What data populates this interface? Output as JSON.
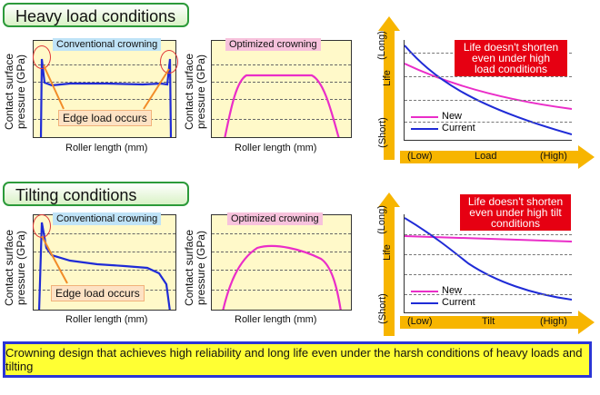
{
  "colors": {
    "blue": "#1f2bd6",
    "pink": "#ea2dc8",
    "callout": "#e60012",
    "banner": "#ffff33",
    "arrow": "#f7b500"
  },
  "common": {
    "ylabel_line1": "Contact surface",
    "ylabel_line2": "pressure (GPa)",
    "ylabel_line2_b": "pressure (GPa)",
    "xlabel": "Roller length (mm)",
    "conventional": "Conventional crowning",
    "optimized": "Optimized crowning",
    "edge_load": "Edge load occurs",
    "life": "Life",
    "long": "(Long)",
    "short": "(Short)",
    "low": "(Low)",
    "high": "(High)",
    "legend_new": "New",
    "legend_current": "Current"
  },
  "heavy": {
    "title": "Heavy load conditions",
    "xaxis": "Load",
    "callout_l1": "Life doesn't shorten",
    "callout_l2": "even under high",
    "callout_l3": "load conditions"
  },
  "tilt": {
    "title": "Tilting conditions",
    "xaxis": "Tilt",
    "callout_l1": "Life doesn't shorten",
    "callout_l2": "even under high tilt",
    "callout_l3": "conditions"
  },
  "banner": "Crowning design that achieves high reliability and long life even under the harsh conditions of heavy loads and tilting"
}
